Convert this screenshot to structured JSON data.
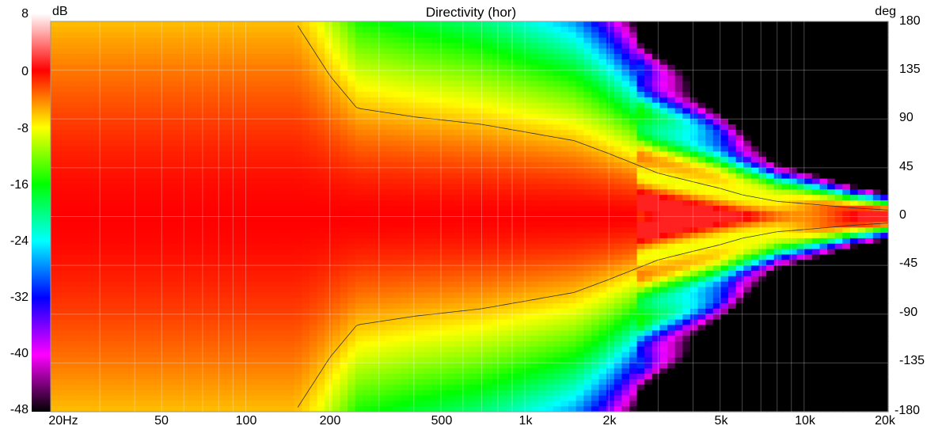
{
  "chart_data": {
    "type": "heatmap",
    "title": "Directivity (hor)",
    "colorbar_unit": "dB",
    "y_unit": "deg",
    "colorbar_ticks": [
      "8",
      "0",
      "-8",
      "-16",
      "-24",
      "-32",
      "-40",
      "-48"
    ],
    "colorbar_range": [
      -48,
      8
    ],
    "x_ticks": [
      "20Hz",
      "50",
      "100",
      "200",
      "500",
      "1k",
      "2k",
      "5k",
      "10k",
      "20k"
    ],
    "x_tick_values": [
      20,
      50,
      100,
      200,
      500,
      1000,
      2000,
      5000,
      10000,
      20000
    ],
    "x_range": [
      20,
      20000
    ],
    "x_scale": "log",
    "y_ticks": [
      "180",
      "135",
      "90",
      "45",
      "0",
      "-45",
      "-90",
      "-135",
      "-180"
    ],
    "y_tick_values": [
      180,
      135,
      90,
      45,
      0,
      -45,
      -90,
      -135,
      -180
    ],
    "y_range": [
      -180,
      180
    ],
    "grid": true,
    "colormap": [
      "#000000",
      "#ff00ff",
      "#0000ff",
      "#00ffff",
      "#00ff00",
      "#ffff00",
      "#ff0000",
      "#ffffff"
    ],
    "beamwidth_profile": {
      "freq_hz": [
        20,
        150,
        200,
        250,
        400,
        700,
        1000,
        1500,
        2000,
        3000,
        4000,
        5000,
        6000,
        8000,
        10000,
        15000,
        20000
      ],
      "minus6db_half_angle_deg": [
        180,
        180,
        130,
        100,
        92,
        85,
        78,
        70,
        58,
        40,
        32,
        26,
        20,
        14,
        12,
        8,
        6
      ]
    }
  }
}
